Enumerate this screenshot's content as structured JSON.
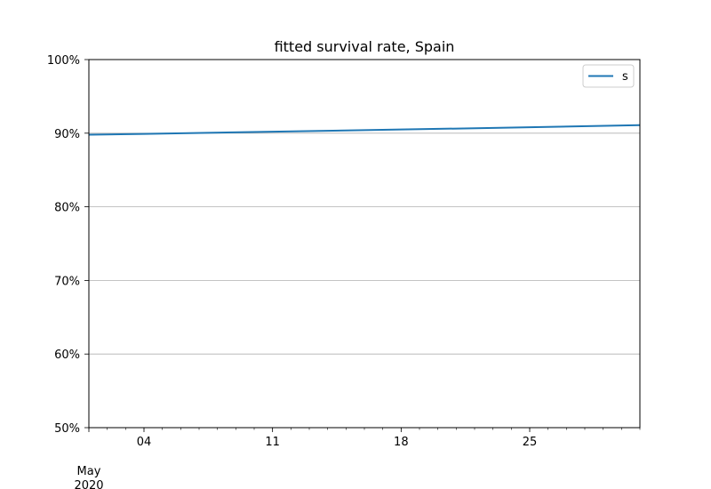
{
  "chart_data": {
    "type": "line",
    "title": "fitted survival rate, Spain",
    "xlabel": "",
    "ylabel": "",
    "x_range": [
      "2020-05-01",
      "2020-05-31"
    ],
    "ylim": [
      0.5,
      1.0
    ],
    "y_ticks": [
      0.5,
      0.6,
      0.7,
      0.8,
      0.9,
      1.0
    ],
    "y_tick_labels": [
      "50%",
      "60%",
      "70%",
      "80%",
      "90%",
      "100%"
    ],
    "x_major_ticks": [
      "2020-05-04",
      "2020-05-11",
      "2020-05-18",
      "2020-05-25"
    ],
    "x_tick_labels": [
      "04",
      "11",
      "18",
      "25"
    ],
    "x_period_label": [
      "May",
      "2020"
    ],
    "grid": "y-major",
    "legend_position": "top-right",
    "series": [
      {
        "name": "s",
        "color": "#1f77b4",
        "x": [
          "2020-05-01",
          "2020-05-04",
          "2020-05-11",
          "2020-05-18",
          "2020-05-25",
          "2020-05-31"
        ],
        "values": [
          0.898,
          0.899,
          0.902,
          0.905,
          0.908,
          0.911
        ]
      }
    ]
  }
}
